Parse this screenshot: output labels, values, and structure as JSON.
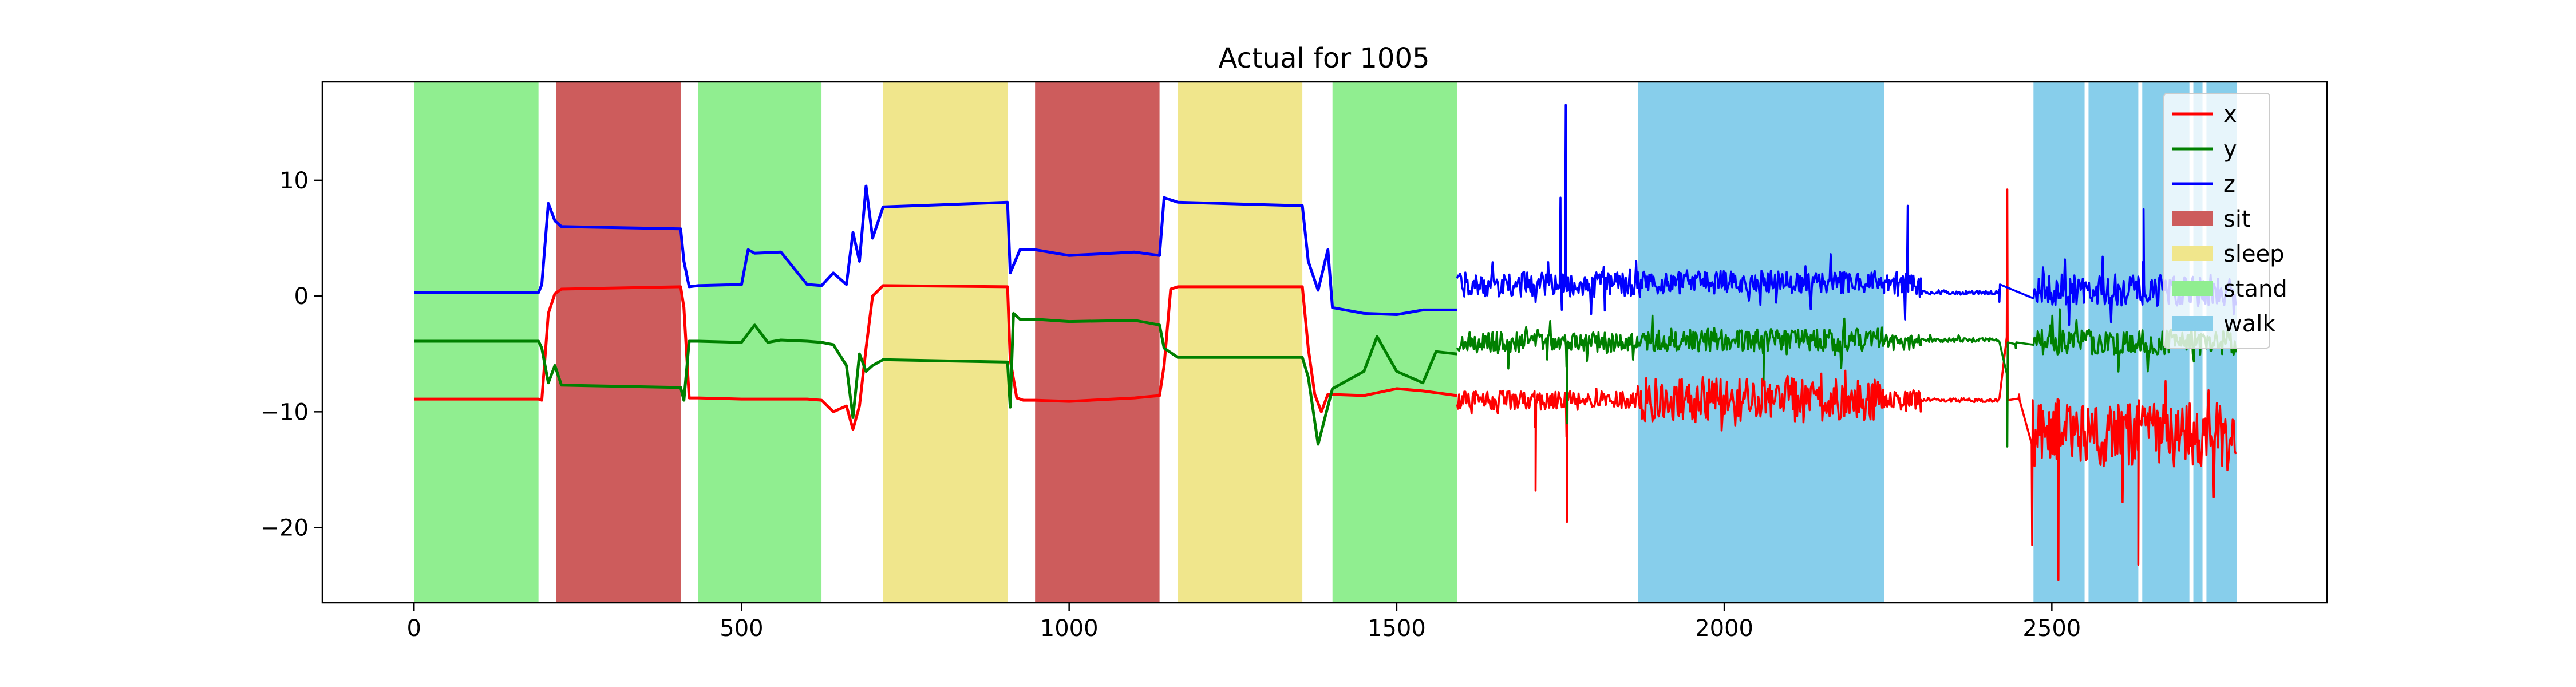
{
  "chart_data": {
    "type": "line",
    "title": "Actual for 1005",
    "xlabel": "",
    "ylabel": "",
    "xlim": [
      -140,
      2920
    ],
    "ylim": [
      -26.5,
      18.5
    ],
    "xticks": [
      0,
      500,
      1000,
      1500,
      2000,
      2500
    ],
    "yticks": [
      -20,
      -10,
      0,
      10
    ],
    "xtick_labels": [
      "0",
      "500",
      "1000",
      "1500",
      "2000",
      "2500"
    ],
    "ytick_labels": [
      "−20",
      "−10",
      "0",
      "10"
    ],
    "grid": false,
    "legend_position": "upper right",
    "activity_colors": {
      "sit": "#cd5c5c",
      "sleep": "#f0e68c",
      "stand": "#90ee90",
      "walk": "#87ceeb"
    },
    "activity_spans": [
      {
        "activity": "stand",
        "x0": 0,
        "x1": 190
      },
      {
        "activity": "sit",
        "x0": 217,
        "x1": 407
      },
      {
        "activity": "stand",
        "x0": 434,
        "x1": 622
      },
      {
        "activity": "sleep",
        "x0": 716,
        "x1": 906
      },
      {
        "activity": "sit",
        "x0": 948,
        "x1": 1138
      },
      {
        "activity": "sleep",
        "x0": 1166,
        "x1": 1356
      },
      {
        "activity": "stand",
        "x0": 1402,
        "x1": 1592
      },
      {
        "activity": "walk",
        "x0": 1868,
        "x1": 2244
      },
      {
        "activity": "walk",
        "x0": 2472,
        "x1": 2550
      },
      {
        "activity": "walk",
        "x0": 2556,
        "x1": 2632
      },
      {
        "activity": "walk",
        "x0": 2638,
        "x1": 2710
      },
      {
        "activity": "walk",
        "x0": 2716,
        "x1": 2730
      },
      {
        "activity": "walk",
        "x0": 2736,
        "x1": 2782
      }
    ],
    "series": [
      {
        "name": "x",
        "color": "#ff0000",
        "style": "smooth",
        "x": [
          0,
          190,
          195,
          205,
          215,
          225,
          407,
          412,
          420,
          434,
          500,
          600,
          622,
          640,
          660,
          670,
          680,
          690,
          700,
          716,
          906,
          910,
          920,
          930,
          948,
          1000,
          1100,
          1138,
          1145,
          1155,
          1166,
          1356,
          1365,
          1375,
          1385,
          1395,
          1402,
          1450,
          1500,
          1540,
          1592
        ],
        "values": [
          -8.9,
          -8.9,
          -9.0,
          -1.5,
          0.2,
          0.6,
          0.8,
          -1.0,
          -8.8,
          -8.8,
          -8.9,
          -8.9,
          -9.0,
          -10.0,
          -9.5,
          -11.5,
          -9.5,
          -4.5,
          0.0,
          0.9,
          0.8,
          -5.5,
          -8.8,
          -9.0,
          -9.0,
          -9.1,
          -8.8,
          -8.6,
          -6.0,
          0.6,
          0.8,
          0.8,
          -4.5,
          -8.5,
          -10.0,
          -8.5,
          -8.5,
          -8.6,
          -8.0,
          -8.2,
          -8.6
        ]
      },
      {
        "name": "x",
        "color": "#ff0000",
        "style": "noisy",
        "segments": [
          {
            "x0": 1592,
            "x1": 1868,
            "center": -9.0,
            "amp": 1.5
          },
          {
            "x0": 1868,
            "x1": 2244,
            "center": -9.0,
            "amp": 3.5
          },
          {
            "x0": 2244,
            "x1": 2300,
            "center": -9.0,
            "amp": 1.8
          },
          {
            "x0": 2300,
            "x1": 2420,
            "center": -9.0,
            "amp": 0.3
          },
          {
            "x0": 2472,
            "x1": 2782,
            "center": -12.0,
            "amp": 5.0
          }
        ],
        "peaks": [
          {
            "x": 1760,
            "value": -19.5
          },
          {
            "x": 1712,
            "value": -16.8
          },
          {
            "x": 2432,
            "value": 9.2
          },
          {
            "x": 2450,
            "value": -8.5
          },
          {
            "x": 2470,
            "value": -21.5
          },
          {
            "x": 2510,
            "value": -24.5
          },
          {
            "x": 2632,
            "value": -23.2
          }
        ]
      },
      {
        "name": "y",
        "color": "#008000",
        "style": "smooth",
        "x": [
          0,
          190,
          195,
          205,
          215,
          225,
          407,
          412,
          420,
          434,
          500,
          520,
          540,
          560,
          600,
          622,
          640,
          660,
          670,
          680,
          690,
          700,
          716,
          906,
          910,
          915,
          925,
          948,
          1000,
          1100,
          1138,
          1145,
          1166,
          1356,
          1365,
          1380,
          1402,
          1450,
          1470,
          1500,
          1540,
          1560,
          1592
        ],
        "values": [
          -3.9,
          -3.9,
          -4.5,
          -7.5,
          -6.0,
          -7.7,
          -7.9,
          -9.0,
          -3.9,
          -3.9,
          -4.0,
          -2.5,
          -4.0,
          -3.8,
          -3.9,
          -4.0,
          -4.2,
          -6.0,
          -10.5,
          -5.0,
          -6.5,
          -6.0,
          -5.5,
          -5.7,
          -9.6,
          -1.5,
          -2.0,
          -2.0,
          -2.2,
          -2.1,
          -2.5,
          -4.5,
          -5.3,
          -5.3,
          -7.0,
          -12.8,
          -8.0,
          -6.5,
          -3.5,
          -6.5,
          -7.5,
          -4.8,
          -5.0
        ]
      },
      {
        "name": "y",
        "color": "#008000",
        "style": "noisy",
        "segments": [
          {
            "x0": 1592,
            "x1": 1868,
            "center": -4.0,
            "amp": 1.6
          },
          {
            "x0": 1868,
            "x1": 2244,
            "center": -3.8,
            "amp": 1.8
          },
          {
            "x0": 2244,
            "x1": 2300,
            "center": -4.0,
            "amp": 1.2
          },
          {
            "x0": 2300,
            "x1": 2420,
            "center": -3.8,
            "amp": 0.3
          },
          {
            "x0": 2472,
            "x1": 2782,
            "center": -4.0,
            "amp": 2.0
          }
        ],
        "peaks": [
          {
            "x": 1760,
            "value": -11.0
          },
          {
            "x": 2060,
            "value": -7.2
          },
          {
            "x": 2432,
            "value": -13.0
          },
          {
            "x": 2445,
            "value": -4.5
          }
        ]
      },
      {
        "name": "z",
        "color": "#0000ff",
        "style": "smooth",
        "x": [
          0,
          190,
          195,
          205,
          215,
          225,
          407,
          412,
          420,
          434,
          500,
          510,
          520,
          560,
          600,
          622,
          640,
          660,
          670,
          680,
          690,
          700,
          716,
          906,
          910,
          925,
          948,
          1000,
          1100,
          1138,
          1145,
          1166,
          1356,
          1365,
          1380,
          1395,
          1402,
          1450,
          1500,
          1540,
          1592
        ],
        "values": [
          0.3,
          0.3,
          1.0,
          8.0,
          6.5,
          6.0,
          5.8,
          3.0,
          0.8,
          0.9,
          1.0,
          4.0,
          3.7,
          3.8,
          1.0,
          0.9,
          2.0,
          1.0,
          5.5,
          3.0,
          9.5,
          5.0,
          7.7,
          8.1,
          2.0,
          4.0,
          4.0,
          3.5,
          3.8,
          3.5,
          8.5,
          8.1,
          7.8,
          3.0,
          0.5,
          4.0,
          -1.0,
          -1.5,
          -1.6,
          -1.2,
          -1.2
        ]
      },
      {
        "name": "z",
        "color": "#0000ff",
        "style": "noisy",
        "segments": [
          {
            "x0": 1592,
            "x1": 1868,
            "center": 1.0,
            "amp": 2.0
          },
          {
            "x0": 1868,
            "x1": 2244,
            "center": 1.2,
            "amp": 1.8
          },
          {
            "x0": 2244,
            "x1": 2300,
            "center": 1.0,
            "amp": 2.0
          },
          {
            "x0": 2300,
            "x1": 2420,
            "center": 0.3,
            "amp": 0.3
          },
          {
            "x0": 2472,
            "x1": 2782,
            "center": 0.5,
            "amp": 2.5
          }
        ],
        "peaks": [
          {
            "x": 1750,
            "value": 8.5
          },
          {
            "x": 1758,
            "value": 16.5
          },
          {
            "x": 1765,
            "value": 0.5
          },
          {
            "x": 2280,
            "value": 7.8
          },
          {
            "x": 2420,
            "value": -0.5
          },
          {
            "x": 2640,
            "value": 7.5
          }
        ]
      }
    ],
    "legend": [
      {
        "label": "x",
        "kind": "line",
        "color": "#ff0000"
      },
      {
        "label": "y",
        "kind": "line",
        "color": "#008000"
      },
      {
        "label": "z",
        "kind": "line",
        "color": "#0000ff"
      },
      {
        "label": "sit",
        "kind": "patch",
        "color": "#cd5c5c"
      },
      {
        "label": "sleep",
        "kind": "patch",
        "color": "#f0e68c"
      },
      {
        "label": "stand",
        "kind": "patch",
        "color": "#90ee90"
      },
      {
        "label": "walk",
        "kind": "patch",
        "color": "#87ceeb"
      }
    ]
  }
}
